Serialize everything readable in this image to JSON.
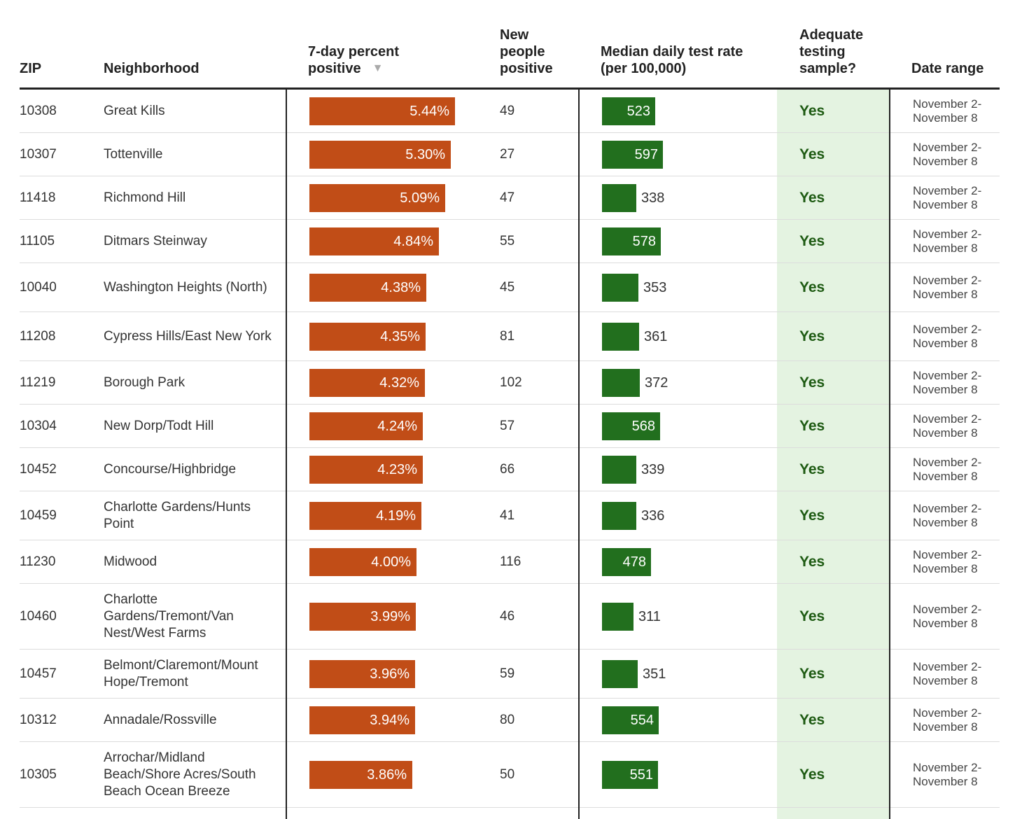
{
  "header": {
    "zip": "ZIP",
    "neighborhood": "Neighborhood",
    "pct_line1": "7-day percent",
    "pct_line2": "positive",
    "new_line1": "New",
    "new_line2": "people",
    "new_line3": "positive",
    "rate_line1": "Median daily test rate",
    "rate_line2": "(per 100,000)",
    "adq_line1": "Adequate",
    "adq_line2": "testing",
    "adq_line3": "sample?",
    "date": "Date range",
    "sort_icon": "triangle-down-icon"
  },
  "colors": {
    "pct_bar": "#c14d17",
    "rate_bar": "#226f1e",
    "adequate_bg": "#e4f3e1",
    "adequate_text": "#1d5a12"
  },
  "rows": [
    {
      "zip": "10308",
      "neighborhood": "Great Kills",
      "pct": 5.44,
      "pct_label": "5.44%",
      "new": "49",
      "rate": 523,
      "rate_label": "523",
      "adequate": "Yes",
      "date_line1": "November 2-",
      "date_line2": "November 8"
    },
    {
      "zip": "10307",
      "neighborhood": "Tottenville",
      "pct": 5.3,
      "pct_label": "5.30%",
      "new": "27",
      "rate": 597,
      "rate_label": "597",
      "adequate": "Yes",
      "date_line1": "November 2-",
      "date_line2": "November 8"
    },
    {
      "zip": "11418",
      "neighborhood": "Richmond Hill",
      "pct": 5.09,
      "pct_label": "5.09%",
      "new": "47",
      "rate": 338,
      "rate_label": "338",
      "adequate": "Yes",
      "date_line1": "November 2-",
      "date_line2": "November 8"
    },
    {
      "zip": "11105",
      "neighborhood": "Ditmars Steinway",
      "pct": 4.84,
      "pct_label": "4.84%",
      "new": "55",
      "rate": 578,
      "rate_label": "578",
      "adequate": "Yes",
      "date_line1": "November 2-",
      "date_line2": "November 8"
    },
    {
      "zip": "10040",
      "neighborhood": "Washington Heights (North)",
      "pct": 4.38,
      "pct_label": "4.38%",
      "new": "45",
      "rate": 353,
      "rate_label": "353",
      "adequate": "Yes",
      "date_line1": "November 2-",
      "date_line2": "November 8"
    },
    {
      "zip": "11208",
      "neighborhood": "Cypress Hills/East New York",
      "pct": 4.35,
      "pct_label": "4.35%",
      "new": "81",
      "rate": 361,
      "rate_label": "361",
      "adequate": "Yes",
      "date_line1": "November 2-",
      "date_line2": "November 8"
    },
    {
      "zip": "11219",
      "neighborhood": "Borough Park",
      "pct": 4.32,
      "pct_label": "4.32%",
      "new": "102",
      "rate": 372,
      "rate_label": "372",
      "adequate": "Yes",
      "date_line1": "November 2-",
      "date_line2": "November 8"
    },
    {
      "zip": "10304",
      "neighborhood": "New Dorp/Todt Hill",
      "pct": 4.24,
      "pct_label": "4.24%",
      "new": "57",
      "rate": 568,
      "rate_label": "568",
      "adequate": "Yes",
      "date_line1": "November 2-",
      "date_line2": "November 8"
    },
    {
      "zip": "10452",
      "neighborhood": "Concourse/Highbridge",
      "pct": 4.23,
      "pct_label": "4.23%",
      "new": "66",
      "rate": 339,
      "rate_label": "339",
      "adequate": "Yes",
      "date_line1": "November 2-",
      "date_line2": "November 8"
    },
    {
      "zip": "10459",
      "neighborhood": "Charlotte Gardens/Hunts Point",
      "pct": 4.19,
      "pct_label": "4.19%",
      "new": "41",
      "rate": 336,
      "rate_label": "336",
      "adequate": "Yes",
      "date_line1": "November 2-",
      "date_line2": "November 8"
    },
    {
      "zip": "11230",
      "neighborhood": "Midwood",
      "pct": 4.0,
      "pct_label": "4.00%",
      "new": "116",
      "rate": 478,
      "rate_label": "478",
      "adequate": "Yes",
      "date_line1": "November 2-",
      "date_line2": "November 8"
    },
    {
      "zip": "10460",
      "neighborhood": "Charlotte Gardens/Tremont/Van Nest/West Farms",
      "pct": 3.99,
      "pct_label": "3.99%",
      "new": "46",
      "rate": 311,
      "rate_label": "311",
      "adequate": "Yes",
      "date_line1": "November 2-",
      "date_line2": "November 8"
    },
    {
      "zip": "10457",
      "neighborhood": "Belmont/Claremont/Mount Hope/Tremont",
      "pct": 3.96,
      "pct_label": "3.96%",
      "new": "59",
      "rate": 351,
      "rate_label": "351",
      "adequate": "Yes",
      "date_line1": "November 2-",
      "date_line2": "November 8"
    },
    {
      "zip": "10312",
      "neighborhood": "Annadale/Rossville",
      "pct": 3.94,
      "pct_label": "3.94%",
      "new": "80",
      "rate": 554,
      "rate_label": "554",
      "adequate": "Yes",
      "date_line1": "November 2-",
      "date_line2": "November 8"
    },
    {
      "zip": "10305",
      "neighborhood": "Arrochar/Midland Beach/Shore Acres/South Beach Ocean Breeze",
      "pct": 3.86,
      "pct_label": "3.86%",
      "new": "50",
      "rate": 551,
      "rate_label": "551",
      "adequate": "Yes",
      "date_line1": "November 2-",
      "date_line2": "November 8"
    }
  ]
}
